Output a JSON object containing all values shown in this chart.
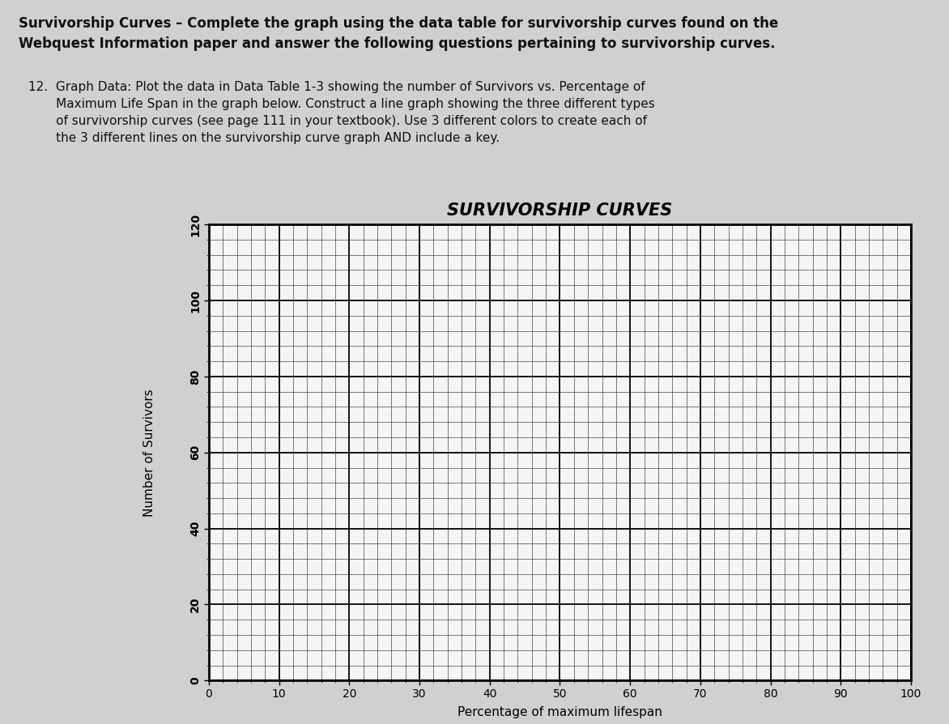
{
  "title": "SURVIVORSHIP CURVES",
  "xlabel": "Percentage of maximum lifespan",
  "ylabel": "Number of Survivors",
  "xlim": [
    0,
    100
  ],
  "ylim": [
    0,
    120
  ],
  "xticks": [
    0,
    10,
    20,
    30,
    40,
    50,
    60,
    70,
    80,
    90,
    100
  ],
  "yticks": [
    0,
    20,
    40,
    60,
    80,
    100,
    120
  ],
  "grid_color": "#111111",
  "background_color": "#f5f5f5",
  "title_fontsize": 15,
  "label_fontsize": 11,
  "tick_fontsize": 10,
  "figure_bg": "#d0d0d0",
  "header_line1": "Survivorship Curves – Complete the graph using the data table for survivorship curves found on the",
  "header_line2": "Webquest Information paper and answer the following questions pertaining to survivorship curves.",
  "body_line1": "12.  Graph Data: Plot the data in Data Table 1-3 showing the number of Survivors vs. Percentage of",
  "body_line2": "       Maximum Life Span in the graph below. Construct a line graph showing the three different types",
  "body_line3": "       of survivorship curves (see page 111 in your textbook). Use 3 different colors to create each of",
  "body_line4": "       the 3 different lines on the survivorship curve graph AND include a key."
}
